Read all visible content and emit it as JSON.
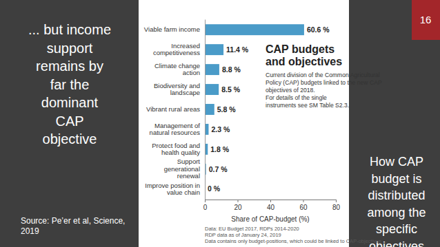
{
  "chart_data": {
    "type": "bar",
    "orientation": "horizontal",
    "title": "CAP budgets and objectives",
    "subtitle": [
      "Current division of the Common Agricultural",
      "Policy (CAP) budgets linked to the new CAP",
      "objectives of 2018.",
      "For details of the single",
      "instruments see SM Table S2.3."
    ],
    "x_label": "Share of CAP-budget (%)",
    "annotations": [
      "Data: EU Budget 2017, RDPs 2014-2020",
      "RDP data as of January 24, 2019",
      "Data contains only budget-positions, which could be linked to CAP-objectives"
    ],
    "categories": [
      "Viable farm income",
      "Increased competitiveness",
      "Climate change action",
      "Biodiversity and landscape",
      "Vibrant rural areas",
      "Management of natural resources",
      "Protect food and health quality",
      "Support generational renewal",
      "Improve position in value chain"
    ],
    "values": [
      60.6,
      11.4,
      8.8,
      8.5,
      5.8,
      2.3,
      1.8,
      0.7,
      0
    ],
    "value_labels": [
      "60.6 %",
      "11.4 %",
      "8.8 %",
      "8.5 %",
      "5.8 %",
      "2.3 %",
      "1.8 %",
      "0.7 %",
      "0 %"
    ],
    "data_labels": true,
    "color": "#4a9bc8",
    "xlim": [
      0,
      80
    ],
    "xticks": [
      0,
      20,
      40,
      60,
      80
    ],
    "grid": false
  },
  "slide": {
    "heading": [
      "... but income",
      "support",
      "remains by",
      "far the",
      "dominant",
      "CAP",
      "objective"
    ],
    "caption": [
      "How CAP",
      "budget is",
      "distributed",
      "among the",
      "specific",
      "objectives"
    ],
    "page_number": "16",
    "source": [
      "Source: Pe’er et al, Science,",
      "2019"
    ]
  }
}
